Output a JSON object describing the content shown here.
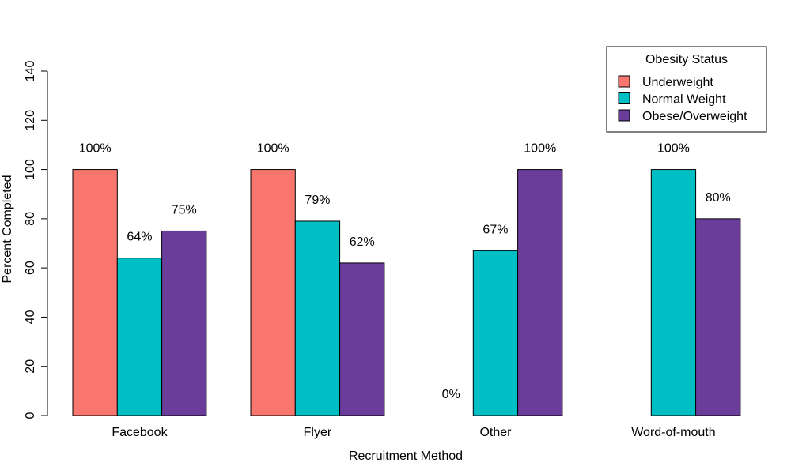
{
  "chart_data": {
    "type": "bar",
    "categories": [
      "Facebook",
      "Flyer",
      "Other",
      "Word-of-mouth"
    ],
    "xlabel": "Recruitment Method",
    "ylabel": "Percent Completed",
    "ylim": [
      0,
      140
    ],
    "yticks": [
      0,
      20,
      40,
      60,
      80,
      100,
      120,
      140
    ],
    "grid": false,
    "legend": {
      "title": "Obesity Status",
      "placement": "top-right"
    },
    "series": [
      {
        "name": "Underweight",
        "color": "#F8766D",
        "values": [
          100,
          100,
          0,
          null
        ],
        "labels": [
          "100%",
          "100%",
          "0%",
          ""
        ]
      },
      {
        "name": "Normal Weight",
        "color": "#00BFC4",
        "values": [
          64,
          79,
          67,
          100
        ],
        "labels": [
          "64%",
          "79%",
          "67%",
          "100%"
        ]
      },
      {
        "name": "Obese/Overweight",
        "color": "#6A3D9A",
        "values": [
          75,
          62,
          100,
          80
        ],
        "labels": [
          "75%",
          "62%",
          "100%",
          "80%"
        ]
      }
    ]
  }
}
